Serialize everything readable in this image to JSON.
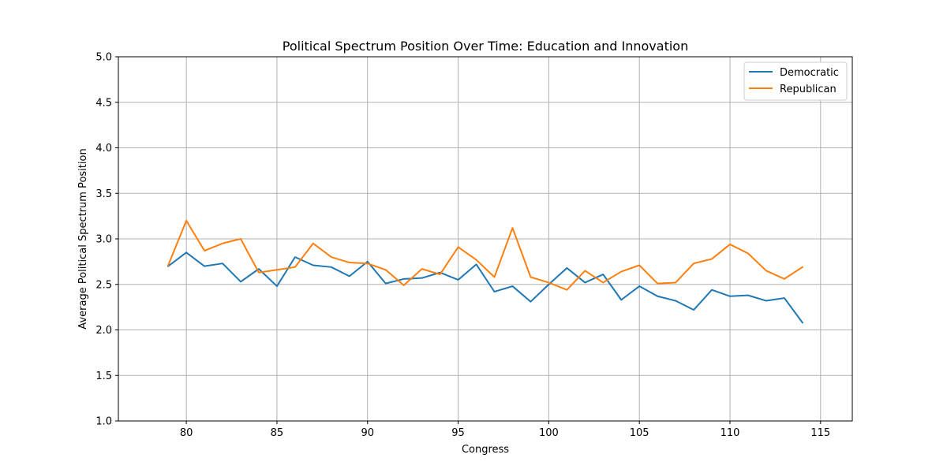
{
  "chart_data": {
    "type": "line",
    "title": "Political Spectrum Position Over Time: Education and Innovation",
    "xlabel": "Congress",
    "ylabel": "Average Political Spectrum Position",
    "xlim": [
      76.25,
      116.75
    ],
    "ylim": [
      1.0,
      5.0
    ],
    "xticks": [
      80,
      85,
      90,
      95,
      100,
      105,
      110,
      115
    ],
    "yticks": [
      "1.0",
      "1.5",
      "2.0",
      "2.5",
      "3.0",
      "3.5",
      "4.0",
      "4.5",
      "5.0"
    ],
    "grid": true,
    "legend_position": "top-right",
    "x": [
      79,
      80,
      81,
      82,
      83,
      84,
      85,
      86,
      87,
      88,
      89,
      90,
      91,
      92,
      93,
      94,
      95,
      96,
      97,
      98,
      99,
      100,
      101,
      102,
      103,
      104,
      105,
      106,
      107,
      108,
      109,
      110,
      111,
      112,
      113,
      114
    ],
    "series": [
      {
        "name": "Democratic",
        "color": "#1f77b4",
        "values": [
          2.7,
          2.85,
          2.7,
          2.73,
          2.53,
          2.67,
          2.48,
          2.8,
          2.71,
          2.69,
          2.59,
          2.75,
          2.51,
          2.56,
          2.57,
          2.63,
          2.55,
          2.72,
          2.42,
          2.48,
          2.31,
          2.5,
          2.68,
          2.52,
          2.61,
          2.33,
          2.48,
          2.37,
          2.32,
          2.22,
          2.44,
          2.37,
          2.38,
          2.32,
          2.35,
          2.08
        ]
      },
      {
        "name": "Republican",
        "color": "#ff7f0e",
        "values": [
          2.71,
          3.2,
          2.87,
          2.95,
          3.0,
          2.63,
          2.66,
          2.69,
          2.95,
          2.8,
          2.74,
          2.73,
          2.66,
          2.49,
          2.67,
          2.61,
          2.91,
          2.77,
          2.58,
          3.12,
          2.58,
          2.52,
          2.44,
          2.65,
          2.52,
          2.64,
          2.71,
          2.51,
          2.52,
          2.73,
          2.78,
          2.94,
          2.84,
          2.65,
          2.56,
          2.69
        ]
      }
    ]
  }
}
